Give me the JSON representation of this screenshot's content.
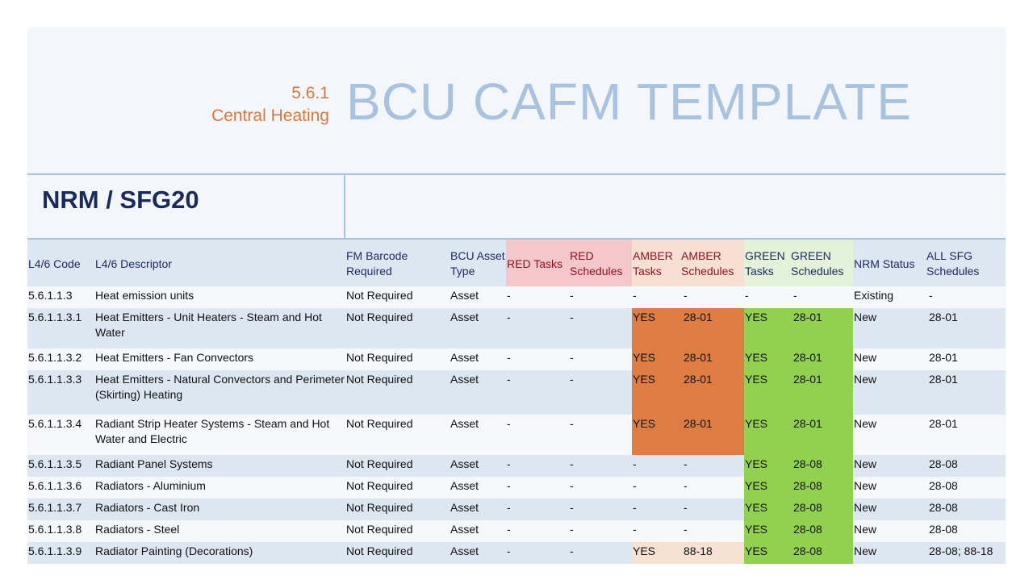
{
  "header": {
    "section_number": "5.6.1",
    "section_name": "Central Heating",
    "title": "BCU CAFM TEMPLATE"
  },
  "panel_title": "NRM / SFG20",
  "table": {
    "columns": {
      "code": "L4/6 Code",
      "descriptor": "L4/6 Descriptor",
      "barcode": "FM Barcode Required",
      "asset_type": "BCU Asset Type",
      "red_tasks": "RED Tasks",
      "red_schedules": "RED Schedules",
      "amber_tasks": "AMBER Tasks",
      "amber_schedules": "AMBER Schedules",
      "green_tasks": "GREEN Tasks",
      "green_schedules": "GREEN Schedules",
      "nrm_status": "NRM Status",
      "all_sfg": "ALL SFG Schedules"
    },
    "rows": [
      {
        "code": "5.6.1.1.3",
        "descriptor": "Heat emission units",
        "barcode": "Not Required",
        "asset_type": "Asset",
        "red_tasks": "-",
        "red_schedules": "-",
        "amber_tasks": "-",
        "amber_schedules": "-",
        "green_tasks": "-",
        "green_schedules": "-",
        "nrm_status": "Existing",
        "all_sfg": "-"
      },
      {
        "code": "5.6.1.1.3.1",
        "descriptor": "Heat Emitters - Unit Heaters - Steam and Hot Water",
        "barcode": "Not Required",
        "asset_type": "Asset",
        "red_tasks": "-",
        "red_schedules": "-",
        "amber_tasks": "YES",
        "amber_schedules": "28-01",
        "green_tasks": "YES",
        "green_schedules": "28-01",
        "nrm_status": "New",
        "all_sfg": "28-01"
      },
      {
        "code": "5.6.1.1.3.2",
        "descriptor": "Heat Emitters - Fan Convectors",
        "barcode": "Not Required",
        "asset_type": "Asset",
        "red_tasks": "-",
        "red_schedules": "-",
        "amber_tasks": "YES",
        "amber_schedules": "28-01",
        "green_tasks": "YES",
        "green_schedules": "28-01",
        "nrm_status": "New",
        "all_sfg": "28-01"
      },
      {
        "code": "5.6.1.1.3.3",
        "descriptor": "Heat Emitters - Natural Convectors and Perimeter (Skirting) Heating",
        "barcode": "Not Required",
        "asset_type": "Asset",
        "red_tasks": "-",
        "red_schedules": "-",
        "amber_tasks": "YES",
        "amber_schedules": "28-01",
        "green_tasks": "YES",
        "green_schedules": "28-01",
        "nrm_status": "New",
        "all_sfg": "28-01"
      },
      {
        "code": "5.6.1.1.3.4",
        "descriptor": "Radiant Strip Heater Systems - Steam and Hot Water and Electric",
        "barcode": "Not Required",
        "asset_type": "Asset",
        "red_tasks": "-",
        "red_schedules": "-",
        "amber_tasks": "YES",
        "amber_schedules": "28-01",
        "green_tasks": "YES",
        "green_schedules": "28-01",
        "nrm_status": "New",
        "all_sfg": "28-01"
      },
      {
        "code": "5.6.1.1.3.5",
        "descriptor": "Radiant Panel Systems",
        "barcode": "Not Required",
        "asset_type": "Asset",
        "red_tasks": "-",
        "red_schedules": "-",
        "amber_tasks": "-",
        "amber_schedules": "-",
        "green_tasks": "YES",
        "green_schedules": "28-08",
        "nrm_status": "New",
        "all_sfg": "28-08"
      },
      {
        "code": "5.6.1.1.3.6",
        "descriptor": "Radiators - Aluminium",
        "barcode": "Not Required",
        "asset_type": "Asset",
        "red_tasks": "-",
        "red_schedules": "-",
        "amber_tasks": "-",
        "amber_schedules": "-",
        "green_tasks": "YES",
        "green_schedules": "28-08",
        "nrm_status": "New",
        "all_sfg": "28-08"
      },
      {
        "code": "5.6.1.1.3.7",
        "descriptor": "Radiators - Cast Iron",
        "barcode": "Not Required",
        "asset_type": "Asset",
        "red_tasks": "-",
        "red_schedules": "-",
        "amber_tasks": "-",
        "amber_schedules": "-",
        "green_tasks": "YES",
        "green_schedules": "28-08",
        "nrm_status": "New",
        "all_sfg": "28-08"
      },
      {
        "code": "5.6.1.1.3.8",
        "descriptor": "Radiators - Steel",
        "barcode": "Not Required",
        "asset_type": "Asset",
        "red_tasks": "-",
        "red_schedules": "-",
        "amber_tasks": "-",
        "amber_schedules": "-",
        "green_tasks": "YES",
        "green_schedules": "28-08",
        "nrm_status": "New",
        "all_sfg": "28-08"
      },
      {
        "code": "5.6.1.1.3.9",
        "descriptor": "Radiator Painting (Decorations)",
        "barcode": "Not Required",
        "asset_type": "Asset",
        "red_tasks": "-",
        "red_schedules": "-",
        "amber_tasks": "YES",
        "amber_schedules": "88-18",
        "green_tasks": "YES",
        "green_schedules": "28-08",
        "nrm_status": "New",
        "all_sfg": "28-08; 88-18"
      }
    ]
  },
  "colors": {
    "amber_fill": "#de7d41",
    "amber_light_fill": "#f7e1d2",
    "green_fill": "#92d050",
    "red_header": "#f4c7cb",
    "title_blue": "#a9c3df",
    "section_orange": "#d9783b",
    "navy": "#1b2a5c"
  }
}
